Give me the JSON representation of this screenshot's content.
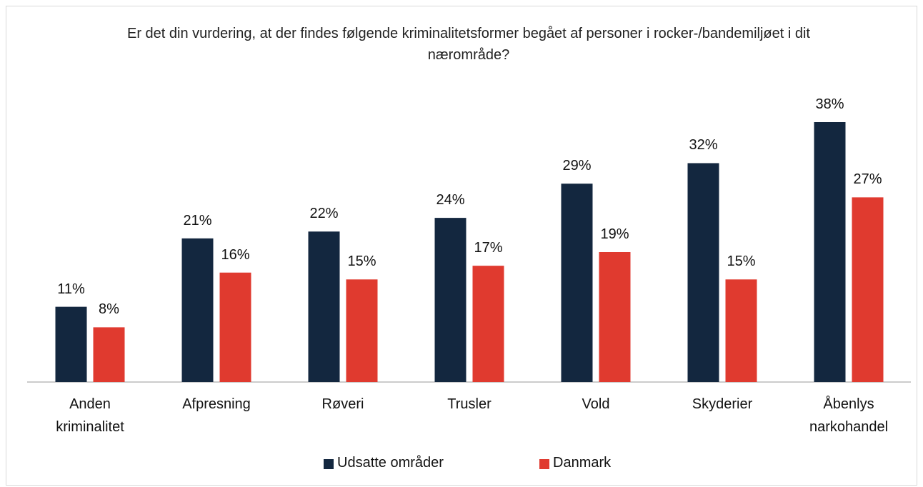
{
  "chart_data": {
    "type": "bar",
    "title": "Er det din vurdering, at der findes følgende kriminalitetsformer begået af personer i rocker-/bandemiljøet i dit nærområde?",
    "categories": [
      "Anden kriminalitet",
      "Afpresning",
      "Røveri",
      "Trusler",
      "Vold",
      "Skyderier",
      "Åbenlys narkohandel"
    ],
    "series": [
      {
        "name": "Udsatte områder",
        "color": "#13273f",
        "values": [
          11,
          21,
          22,
          24,
          29,
          32,
          38
        ],
        "value_labels": [
          "11%",
          "21%",
          "22%",
          "24%",
          "29%",
          "32%",
          "38%"
        ]
      },
      {
        "name": "Danmark",
        "color": "#e03a2f",
        "values": [
          8,
          16,
          15,
          17,
          19,
          15,
          27
        ],
        "value_labels": [
          "8%",
          "16%",
          "15%",
          "17%",
          "19%",
          "15%",
          "27%"
        ]
      }
    ]
  }
}
